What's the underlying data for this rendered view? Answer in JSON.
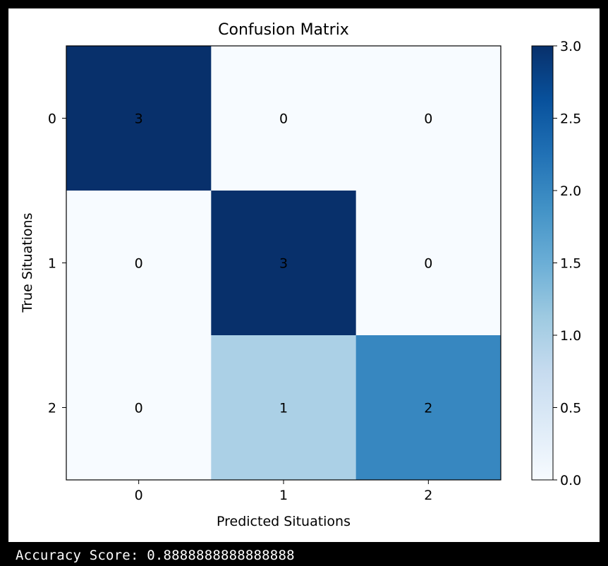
{
  "chart_data": {
    "type": "heatmap",
    "title": "Confusion Matrix",
    "xlabel": "Predicted Situations",
    "ylabel": "True Situations",
    "x_categories": [
      "0",
      "1",
      "2"
    ],
    "y_categories": [
      "0",
      "1",
      "2"
    ],
    "values": [
      [
        3,
        0,
        0
      ],
      [
        0,
        3,
        0
      ],
      [
        0,
        1,
        2
      ]
    ],
    "colormap": "Blues",
    "colorbar": {
      "range": [
        0,
        3
      ],
      "ticks": [
        "0.0",
        "0.5",
        "1.0",
        "1.5",
        "2.0",
        "2.5",
        "3.0"
      ]
    },
    "colors": {
      "low": "#f7fbff",
      "high": "#08306b"
    },
    "grid": false
  },
  "output": {
    "accuracy_text": "Accuracy Score: 0.8888888888888888"
  }
}
